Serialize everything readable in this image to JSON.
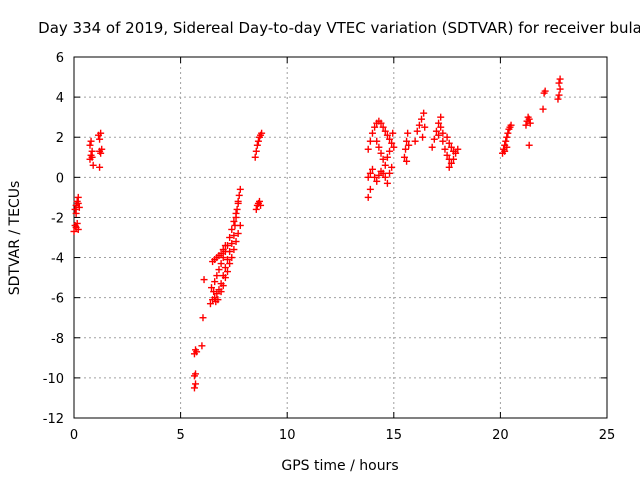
{
  "chart_data": {
    "type": "scatter",
    "title": "Day 334 of 2019, Sidereal Day-to-day VTEC variation (SDTVAR) for receiver bula",
    "xlabel": "GPS time / hours",
    "ylabel": "SDTVAR / TECUs",
    "xlim": [
      0,
      25
    ],
    "ylim": [
      -12,
      6
    ],
    "xticks": [
      0,
      5,
      10,
      15,
      20,
      25
    ],
    "yticks": [
      -12,
      -10,
      -8,
      -6,
      -4,
      -2,
      0,
      2,
      4,
      6
    ],
    "grid": true,
    "marker": "+",
    "series": [
      {
        "name": "SDTVAR",
        "color": "#ff0000",
        "points": [
          [
            0.0,
            -2.7
          ],
          [
            0.05,
            -2.4
          ],
          [
            0.1,
            -2.5
          ],
          [
            0.15,
            -2.3
          ],
          [
            0.2,
            -2.6
          ],
          [
            0.05,
            -1.6
          ],
          [
            0.1,
            -1.4
          ],
          [
            0.15,
            -1.2
          ],
          [
            0.2,
            -1.0
          ],
          [
            0.25,
            -1.5
          ],
          [
            0.1,
            -1.8
          ],
          [
            0.2,
            -1.3
          ],
          [
            0.75,
            0.9
          ],
          [
            0.8,
            1.1
          ],
          [
            0.85,
            1.3
          ],
          [
            0.75,
            1.6
          ],
          [
            0.8,
            1.8
          ],
          [
            0.9,
            0.6
          ],
          [
            0.85,
            1.0
          ],
          [
            1.2,
            0.5
          ],
          [
            1.25,
            1.2
          ],
          [
            1.2,
            1.3
          ],
          [
            1.3,
            1.4
          ],
          [
            1.15,
            2.1
          ],
          [
            1.25,
            2.2
          ],
          [
            1.2,
            1.9
          ],
          [
            5.65,
            -10.5
          ],
          [
            5.7,
            -10.3
          ],
          [
            5.65,
            -9.9
          ],
          [
            5.7,
            -9.8
          ],
          [
            5.65,
            -8.8
          ],
          [
            5.7,
            -8.6
          ],
          [
            5.75,
            -8.7
          ],
          [
            6.0,
            -8.4
          ],
          [
            6.05,
            -7.0
          ],
          [
            6.1,
            -5.1
          ],
          [
            6.4,
            -6.3
          ],
          [
            6.5,
            -6.1
          ],
          [
            6.6,
            -6.0
          ],
          [
            6.7,
            -5.8
          ],
          [
            6.8,
            -5.6
          ],
          [
            6.9,
            -5.3
          ],
          [
            7.0,
            -4.9
          ],
          [
            7.1,
            -4.5
          ],
          [
            7.2,
            -4.1
          ],
          [
            7.3,
            -3.7
          ],
          [
            7.4,
            -3.3
          ],
          [
            7.5,
            -2.9
          ],
          [
            7.55,
            -2.4
          ],
          [
            7.6,
            -2.0
          ],
          [
            7.65,
            -1.6
          ],
          [
            7.7,
            -1.2
          ],
          [
            7.75,
            -0.9
          ],
          [
            7.8,
            -0.6
          ],
          [
            6.6,
            -5.2
          ],
          [
            6.7,
            -4.9
          ],
          [
            6.8,
            -4.6
          ],
          [
            6.9,
            -4.3
          ],
          [
            7.0,
            -4.0
          ],
          [
            7.1,
            -3.7
          ],
          [
            7.2,
            -3.4
          ],
          [
            7.3,
            -3.0
          ],
          [
            7.4,
            -2.6
          ],
          [
            7.5,
            -2.2
          ],
          [
            7.6,
            -1.8
          ],
          [
            7.7,
            -1.3
          ],
          [
            6.5,
            -4.2
          ],
          [
            6.6,
            -4.1
          ],
          [
            6.7,
            -4.0
          ],
          [
            6.8,
            -3.9
          ],
          [
            6.9,
            -3.8
          ],
          [
            7.0,
            -3.6
          ],
          [
            7.1,
            -3.4
          ],
          [
            6.9,
            -5.7
          ],
          [
            7.0,
            -5.4
          ],
          [
            7.1,
            -5.0
          ],
          [
            7.2,
            -4.7
          ],
          [
            7.3,
            -4.3
          ],
          [
            7.4,
            -4.0
          ],
          [
            7.5,
            -3.6
          ],
          [
            7.6,
            -3.2
          ],
          [
            7.7,
            -2.8
          ],
          [
            7.8,
            -2.4
          ],
          [
            6.45,
            -5.5
          ],
          [
            6.55,
            -5.7
          ],
          [
            6.65,
            -6.2
          ],
          [
            6.75,
            -6.1
          ],
          [
            8.5,
            1.0
          ],
          [
            8.55,
            1.3
          ],
          [
            8.6,
            1.6
          ],
          [
            8.65,
            1.8
          ],
          [
            8.7,
            2.0
          ],
          [
            8.75,
            2.1
          ],
          [
            8.8,
            2.2
          ],
          [
            8.6,
            -1.4
          ],
          [
            8.65,
            -1.3
          ],
          [
            8.7,
            -1.2
          ],
          [
            8.75,
            -1.4
          ],
          [
            8.55,
            -1.6
          ],
          [
            13.8,
            -1.0
          ],
          [
            13.9,
            -0.6
          ],
          [
            13.8,
            0.0
          ],
          [
            13.9,
            0.2
          ],
          [
            14.0,
            0.4
          ],
          [
            14.1,
            0.0
          ],
          [
            14.2,
            -0.2
          ],
          [
            14.3,
            0.1
          ],
          [
            14.4,
            0.3
          ],
          [
            14.5,
            0.2
          ],
          [
            14.6,
            0.0
          ],
          [
            14.7,
            -0.3
          ],
          [
            14.8,
            0.2
          ],
          [
            14.9,
            0.5
          ],
          [
            13.8,
            1.4
          ],
          [
            13.9,
            1.8
          ],
          [
            14.0,
            2.2
          ],
          [
            14.1,
            2.5
          ],
          [
            14.2,
            2.7
          ],
          [
            14.3,
            2.8
          ],
          [
            14.4,
            2.7
          ],
          [
            14.5,
            2.5
          ],
          [
            14.6,
            2.3
          ],
          [
            14.7,
            2.1
          ],
          [
            14.8,
            1.9
          ],
          [
            14.9,
            1.7
          ],
          [
            15.0,
            1.5
          ],
          [
            14.95,
            2.2
          ],
          [
            14.2,
            1.8
          ],
          [
            14.3,
            1.5
          ],
          [
            14.4,
            1.2
          ],
          [
            14.5,
            0.9
          ],
          [
            14.6,
            0.6
          ],
          [
            14.7,
            1.0
          ],
          [
            14.8,
            1.3
          ],
          [
            15.5,
            1.0
          ],
          [
            15.55,
            1.4
          ],
          [
            15.6,
            1.8
          ],
          [
            15.65,
            2.2
          ],
          [
            15.7,
            1.6
          ],
          [
            15.6,
            0.8
          ],
          [
            16.0,
            1.8
          ],
          [
            16.1,
            2.3
          ],
          [
            16.2,
            2.6
          ],
          [
            16.3,
            2.9
          ],
          [
            16.4,
            3.2
          ],
          [
            16.35,
            2.0
          ],
          [
            16.45,
            2.5
          ],
          [
            16.8,
            1.5
          ],
          [
            16.9,
            1.9
          ],
          [
            17.0,
            2.3
          ],
          [
            17.1,
            2.7
          ],
          [
            17.2,
            3.0
          ],
          [
            17.1,
            2.1
          ],
          [
            17.3,
            1.8
          ],
          [
            17.4,
            1.4
          ],
          [
            17.5,
            1.1
          ],
          [
            17.6,
            0.9
          ],
          [
            17.7,
            0.7
          ],
          [
            17.8,
            0.9
          ],
          [
            17.9,
            1.2
          ],
          [
            18.0,
            1.4
          ],
          [
            17.2,
            2.5
          ],
          [
            17.3,
            2.2
          ],
          [
            17.5,
            2.0
          ],
          [
            17.6,
            1.7
          ],
          [
            17.7,
            1.5
          ],
          [
            17.8,
            1.3
          ],
          [
            17.6,
            0.5
          ],
          [
            20.1,
            1.2
          ],
          [
            20.15,
            1.4
          ],
          [
            20.2,
            1.6
          ],
          [
            20.25,
            1.8
          ],
          [
            20.3,
            2.0
          ],
          [
            20.35,
            2.2
          ],
          [
            20.4,
            2.4
          ],
          [
            20.45,
            2.5
          ],
          [
            20.5,
            2.6
          ],
          [
            20.2,
            1.3
          ],
          [
            20.3,
            1.5
          ],
          [
            21.2,
            2.6
          ],
          [
            21.25,
            2.8
          ],
          [
            21.3,
            3.0
          ],
          [
            21.35,
            2.9
          ],
          [
            21.4,
            2.7
          ],
          [
            21.35,
            1.6
          ],
          [
            22.0,
            3.4
          ],
          [
            22.05,
            4.2
          ],
          [
            22.1,
            4.3
          ],
          [
            22.7,
            3.9
          ],
          [
            22.75,
            4.1
          ],
          [
            22.8,
            4.4
          ],
          [
            22.75,
            4.7
          ],
          [
            22.8,
            4.9
          ]
        ]
      }
    ]
  }
}
